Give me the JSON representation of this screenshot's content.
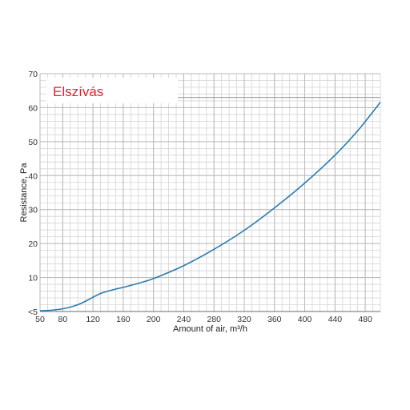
{
  "chart_data": {
    "type": "line",
    "title": "Elszívás",
    "title_color": "#e8202a",
    "xlabel": "Amount of air, m³/h",
    "ylabel": "Resistance, Pa",
    "xlim": [
      50,
      500
    ],
    "ylim": [
      0,
      70
    ],
    "grid": true,
    "x_ticks": [
      {
        "value": 50,
        "label": "50"
      },
      {
        "value": 80,
        "label": "80"
      },
      {
        "value": 120,
        "label": "120"
      },
      {
        "value": 160,
        "label": "160"
      },
      {
        "value": 200,
        "label": "200"
      },
      {
        "value": 240,
        "label": "240"
      },
      {
        "value": 280,
        "label": "280"
      },
      {
        "value": 320,
        "label": "320"
      },
      {
        "value": 360,
        "label": "360"
      },
      {
        "value": 400,
        "label": "400"
      },
      {
        "value": 440,
        "label": "440"
      },
      {
        "value": 480,
        "label": "480"
      }
    ],
    "y_ticks": [
      {
        "value": 0,
        "label": "<5"
      },
      {
        "value": 10,
        "label": "10"
      },
      {
        "value": 20,
        "label": "20"
      },
      {
        "value": 30,
        "label": "30"
      },
      {
        "value": 40,
        "label": "40"
      },
      {
        "value": 50,
        "label": "50"
      },
      {
        "value": 60,
        "label": "60"
      },
      {
        "value": 70,
        "label": "70"
      }
    ],
    "series": [
      {
        "color": "#2b7bb0",
        "x": [
          50,
          60,
          70,
          80,
          90,
          100,
          110,
          120,
          130,
          140,
          150,
          160,
          180,
          200,
          240,
          280,
          320,
          360,
          400,
          440,
          470,
          500
        ],
        "y": [
          0.2,
          0.3,
          0.5,
          0.8,
          1.3,
          2.0,
          3.0,
          4.2,
          5.3,
          6.0,
          6.6,
          7.1,
          8.3,
          9.7,
          13.5,
          18.3,
          23.9,
          30.5,
          37.8,
          46.0,
          53.2,
          61.6
        ]
      }
    ],
    "reference_line_y": 63
  }
}
